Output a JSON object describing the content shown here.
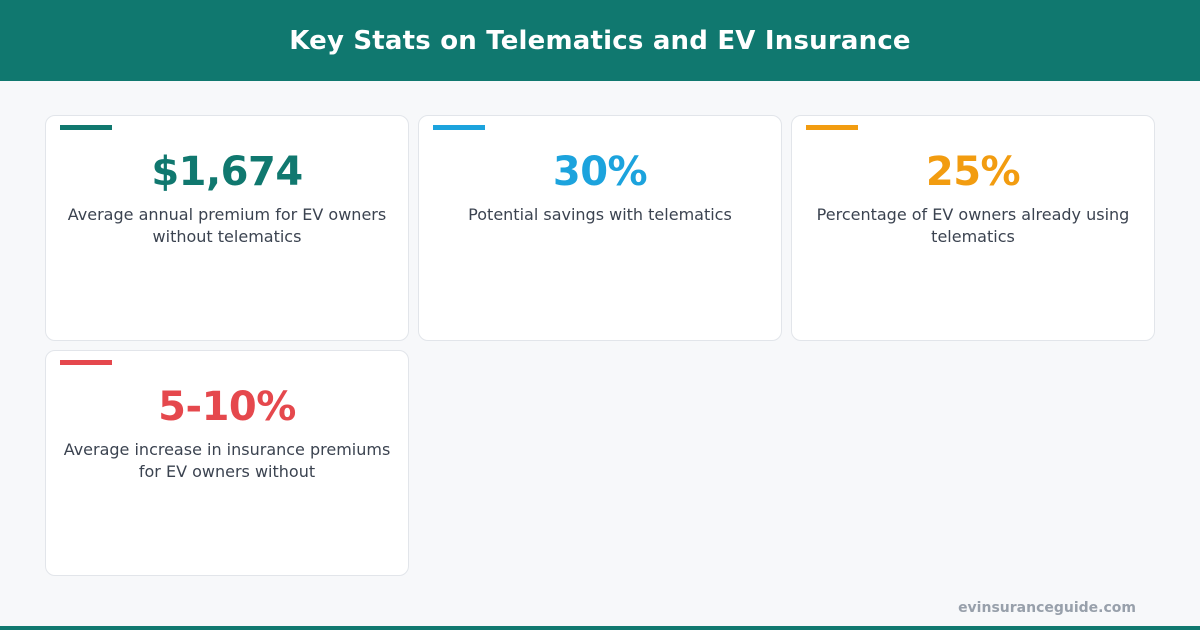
{
  "header": {
    "title": "Key Stats on Telematics and EV Insurance"
  },
  "colors": {
    "brand": "#10786f",
    "teal": "#10786f",
    "blue": "#1ca3dd",
    "orange": "#f29c10",
    "red": "#e5484d"
  },
  "stats": [
    {
      "value": "$1,674",
      "description": "Average annual premium for EV owners without telematics",
      "color": "#10786f"
    },
    {
      "value": "30%",
      "description": "Potential savings with telematics",
      "color": "#1ca3dd"
    },
    {
      "value": "25%",
      "description": "Percentage of EV owners already using telematics",
      "color": "#f29c10"
    },
    {
      "value": "5-10%",
      "description": "Average increase in insurance premiums for EV owners without",
      "color": "#e5484d"
    }
  ],
  "footer": {
    "domain": "evinsuranceguide.com"
  }
}
